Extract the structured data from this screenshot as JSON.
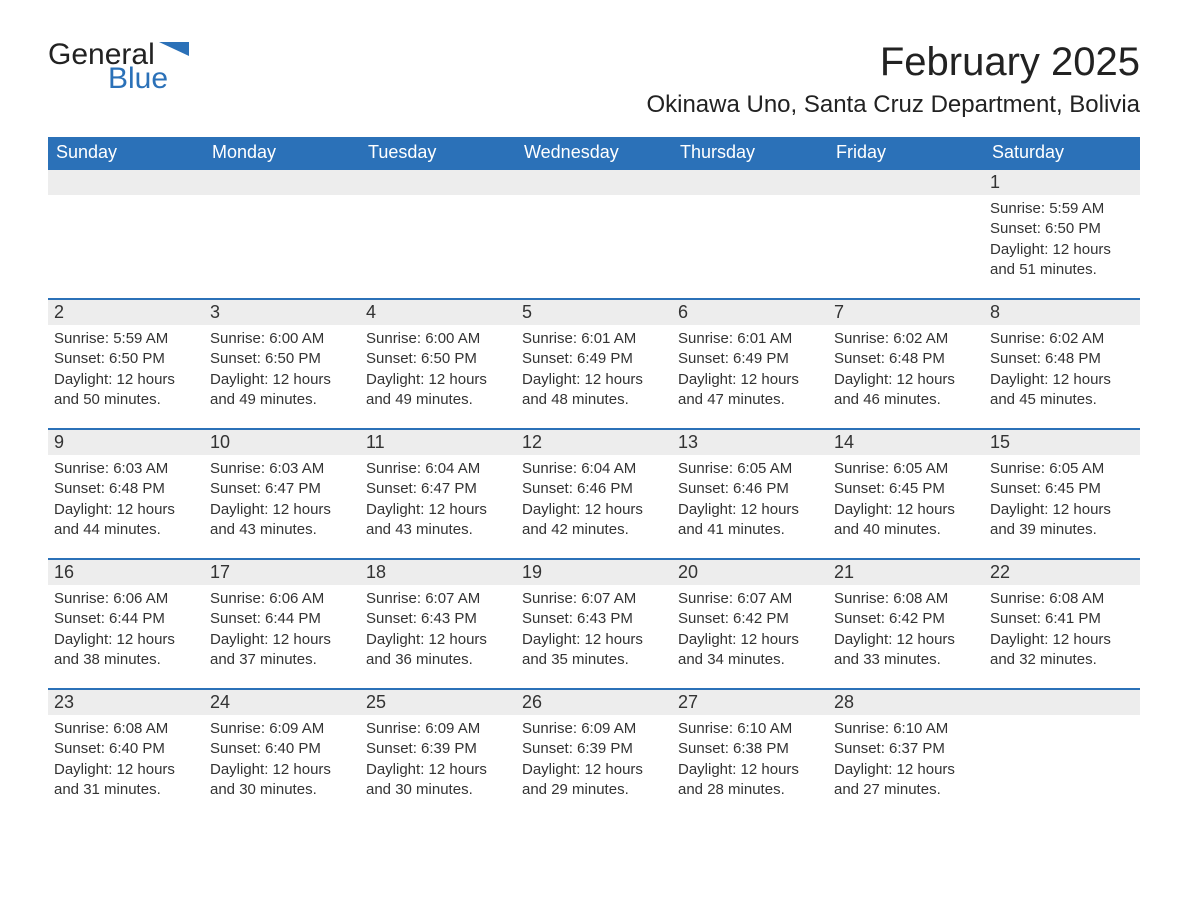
{
  "brand": {
    "word1": "General",
    "word2": "Blue",
    "flag_color": "#2b71b8"
  },
  "title": "February 2025",
  "location": "Okinawa Uno, Santa Cruz Department, Bolivia",
  "colors": {
    "header_bg": "#2b71b8",
    "header_text": "#ffffff",
    "daynum_bg": "#ededed",
    "row_border": "#2b71b8",
    "body_text": "#333333",
    "page_bg": "#ffffff"
  },
  "fonts": {
    "title_size": 40,
    "location_size": 24,
    "weekday_size": 18,
    "daynum_size": 18,
    "body_size": 15
  },
  "weekdays": [
    "Sunday",
    "Monday",
    "Tuesday",
    "Wednesday",
    "Thursday",
    "Friday",
    "Saturday"
  ],
  "weeks": [
    [
      null,
      null,
      null,
      null,
      null,
      null,
      {
        "n": "1",
        "sr": "Sunrise: 5:59 AM",
        "ss": "Sunset: 6:50 PM",
        "dl": "Daylight: 12 hours and 51 minutes."
      }
    ],
    [
      {
        "n": "2",
        "sr": "Sunrise: 5:59 AM",
        "ss": "Sunset: 6:50 PM",
        "dl": "Daylight: 12 hours and 50 minutes."
      },
      {
        "n": "3",
        "sr": "Sunrise: 6:00 AM",
        "ss": "Sunset: 6:50 PM",
        "dl": "Daylight: 12 hours and 49 minutes."
      },
      {
        "n": "4",
        "sr": "Sunrise: 6:00 AM",
        "ss": "Sunset: 6:50 PM",
        "dl": "Daylight: 12 hours and 49 minutes."
      },
      {
        "n": "5",
        "sr": "Sunrise: 6:01 AM",
        "ss": "Sunset: 6:49 PM",
        "dl": "Daylight: 12 hours and 48 minutes."
      },
      {
        "n": "6",
        "sr": "Sunrise: 6:01 AM",
        "ss": "Sunset: 6:49 PM",
        "dl": "Daylight: 12 hours and 47 minutes."
      },
      {
        "n": "7",
        "sr": "Sunrise: 6:02 AM",
        "ss": "Sunset: 6:48 PM",
        "dl": "Daylight: 12 hours and 46 minutes."
      },
      {
        "n": "8",
        "sr": "Sunrise: 6:02 AM",
        "ss": "Sunset: 6:48 PM",
        "dl": "Daylight: 12 hours and 45 minutes."
      }
    ],
    [
      {
        "n": "9",
        "sr": "Sunrise: 6:03 AM",
        "ss": "Sunset: 6:48 PM",
        "dl": "Daylight: 12 hours and 44 minutes."
      },
      {
        "n": "10",
        "sr": "Sunrise: 6:03 AM",
        "ss": "Sunset: 6:47 PM",
        "dl": "Daylight: 12 hours and 43 minutes."
      },
      {
        "n": "11",
        "sr": "Sunrise: 6:04 AM",
        "ss": "Sunset: 6:47 PM",
        "dl": "Daylight: 12 hours and 43 minutes."
      },
      {
        "n": "12",
        "sr": "Sunrise: 6:04 AM",
        "ss": "Sunset: 6:46 PM",
        "dl": "Daylight: 12 hours and 42 minutes."
      },
      {
        "n": "13",
        "sr": "Sunrise: 6:05 AM",
        "ss": "Sunset: 6:46 PM",
        "dl": "Daylight: 12 hours and 41 minutes."
      },
      {
        "n": "14",
        "sr": "Sunrise: 6:05 AM",
        "ss": "Sunset: 6:45 PM",
        "dl": "Daylight: 12 hours and 40 minutes."
      },
      {
        "n": "15",
        "sr": "Sunrise: 6:05 AM",
        "ss": "Sunset: 6:45 PM",
        "dl": "Daylight: 12 hours and 39 minutes."
      }
    ],
    [
      {
        "n": "16",
        "sr": "Sunrise: 6:06 AM",
        "ss": "Sunset: 6:44 PM",
        "dl": "Daylight: 12 hours and 38 minutes."
      },
      {
        "n": "17",
        "sr": "Sunrise: 6:06 AM",
        "ss": "Sunset: 6:44 PM",
        "dl": "Daylight: 12 hours and 37 minutes."
      },
      {
        "n": "18",
        "sr": "Sunrise: 6:07 AM",
        "ss": "Sunset: 6:43 PM",
        "dl": "Daylight: 12 hours and 36 minutes."
      },
      {
        "n": "19",
        "sr": "Sunrise: 6:07 AM",
        "ss": "Sunset: 6:43 PM",
        "dl": "Daylight: 12 hours and 35 minutes."
      },
      {
        "n": "20",
        "sr": "Sunrise: 6:07 AM",
        "ss": "Sunset: 6:42 PM",
        "dl": "Daylight: 12 hours and 34 minutes."
      },
      {
        "n": "21",
        "sr": "Sunrise: 6:08 AM",
        "ss": "Sunset: 6:42 PM",
        "dl": "Daylight: 12 hours and 33 minutes."
      },
      {
        "n": "22",
        "sr": "Sunrise: 6:08 AM",
        "ss": "Sunset: 6:41 PM",
        "dl": "Daylight: 12 hours and 32 minutes."
      }
    ],
    [
      {
        "n": "23",
        "sr": "Sunrise: 6:08 AM",
        "ss": "Sunset: 6:40 PM",
        "dl": "Daylight: 12 hours and 31 minutes."
      },
      {
        "n": "24",
        "sr": "Sunrise: 6:09 AM",
        "ss": "Sunset: 6:40 PM",
        "dl": "Daylight: 12 hours and 30 minutes."
      },
      {
        "n": "25",
        "sr": "Sunrise: 6:09 AM",
        "ss": "Sunset: 6:39 PM",
        "dl": "Daylight: 12 hours and 30 minutes."
      },
      {
        "n": "26",
        "sr": "Sunrise: 6:09 AM",
        "ss": "Sunset: 6:39 PM",
        "dl": "Daylight: 12 hours and 29 minutes."
      },
      {
        "n": "27",
        "sr": "Sunrise: 6:10 AM",
        "ss": "Sunset: 6:38 PM",
        "dl": "Daylight: 12 hours and 28 minutes."
      },
      {
        "n": "28",
        "sr": "Sunrise: 6:10 AM",
        "ss": "Sunset: 6:37 PM",
        "dl": "Daylight: 12 hours and 27 minutes."
      },
      null
    ]
  ]
}
